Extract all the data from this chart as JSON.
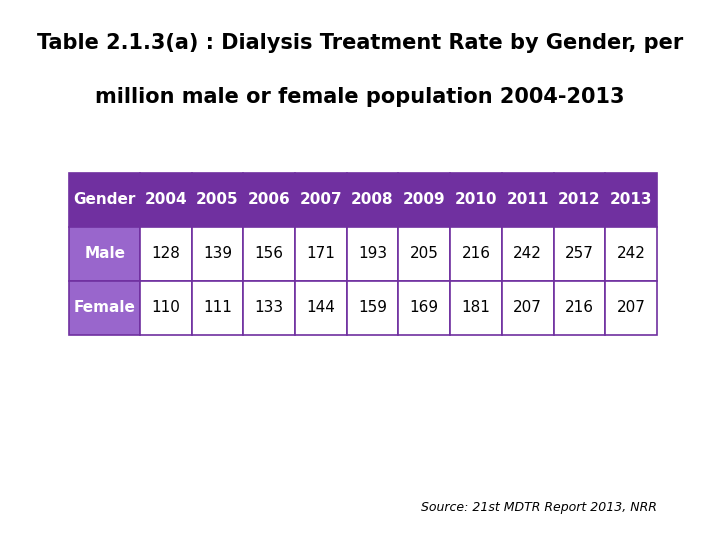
{
  "title_line1": "Table 2.1.3(a) : Dialysis Treatment Rate by Gender, per",
  "title_line2": "million male or female population 2004-2013",
  "source": "Source: 21",
  "source_super": "st",
  "source_rest": " MDTR Report 2013, NRR",
  "columns": [
    "Gender",
    "2004",
    "2005",
    "2006",
    "2007",
    "2008",
    "2009",
    "2010",
    "2011",
    "2012",
    "2013"
  ],
  "rows": [
    [
      "Male",
      "128",
      "139",
      "156",
      "171",
      "193",
      "205",
      "216",
      "242",
      "257",
      "242"
    ],
    [
      "Female",
      "110",
      "111",
      "133",
      "144",
      "159",
      "169",
      "181",
      "207",
      "216",
      "207"
    ]
  ],
  "header_bg": "#7030A0",
  "header_fg": "#FFFFFF",
  "row_label_bg": "#9966CC",
  "row_label_fg": "#FFFFFF",
  "cell_bg": "#FFFFFF",
  "cell_fg": "#000000",
  "border_color": "#7030A0",
  "title_fontsize": 15,
  "table_fontsize": 11
}
